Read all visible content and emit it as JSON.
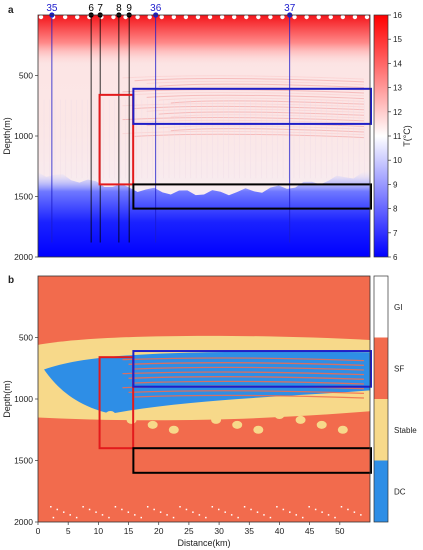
{
  "chart_data": [
    {
      "panel": "a",
      "type": "heatmap",
      "xlabel": "",
      "ylabel": "Depth(m)",
      "xlim": [
        0,
        55
      ],
      "ylim": [
        2000,
        0
      ],
      "yticks": [
        500,
        1000,
        1500,
        2000
      ],
      "colorbar": {
        "label": "T(°C)",
        "range": [
          6,
          16
        ],
        "ticks": [
          "6",
          "7",
          "8",
          "9",
          "10",
          "11",
          "12",
          "13",
          "14",
          "15",
          "16"
        ],
        "colors": [
          "#0000ff",
          "#ffffff",
          "#ff0000"
        ]
      },
      "stations": [
        {
          "label": "35",
          "x": 2.3,
          "color": "#1a1acc"
        },
        {
          "label": "6",
          "x": 8.8,
          "color": "#000000"
        },
        {
          "label": "7",
          "x": 10.3,
          "color": "#000000"
        },
        {
          "label": "8",
          "x": 13.4,
          "color": "#000000"
        },
        {
          "label": "9",
          "x": 15.1,
          "color": "#000000"
        },
        {
          "label": "36",
          "x": 19.5,
          "color": "#1a1acc"
        },
        {
          "label": "37",
          "x": 41.7,
          "color": "#1a1acc"
        }
      ],
      "rectangles": [
        {
          "name": "red",
          "x": [
            10.2,
            15.6
          ],
          "depth": [
            660,
            1400
          ],
          "color": "#e31a1c"
        },
        {
          "name": "blue",
          "x": [
            15.8,
            55
          ],
          "depth": [
            610,
            900
          ],
          "color": "#1f1fc7"
        },
        {
          "name": "black",
          "x": [
            15.8,
            55
          ],
          "depth": [
            1400,
            1600
          ],
          "color": "#000000"
        }
      ],
      "structure": {
        "warm_surface_depth": 150,
        "cold_layer_top_center": 1470,
        "cold_layer_top_edge": 1300
      }
    },
    {
      "panel": "b",
      "type": "heatmap",
      "xlabel": "Distance(km)",
      "ylabel": "Depth(m)",
      "xlim": [
        0,
        55
      ],
      "ylim": [
        2000,
        0
      ],
      "xticks": [
        0,
        5,
        10,
        15,
        20,
        25,
        30,
        35,
        40,
        45,
        50
      ],
      "yticks": [
        500,
        1000,
        1500,
        2000
      ],
      "categories": [
        {
          "label": "DC",
          "color": "#2e8ee6"
        },
        {
          "label": "Stable",
          "color": "#f7d98a"
        },
        {
          "label": "SF",
          "color": "#f26b4d"
        },
        {
          "label": "GI",
          "color": "#ffffff"
        }
      ],
      "rectangles": [
        {
          "name": "red",
          "x": [
            10.2,
            15.6
          ],
          "depth": [
            660,
            1400
          ],
          "color": "#e31a1c"
        },
        {
          "name": "blue",
          "x": [
            15.8,
            55
          ],
          "depth": [
            610,
            900
          ],
          "color": "#1f1fc7"
        },
        {
          "name": "black",
          "x": [
            15.8,
            55
          ],
          "depth": [
            1400,
            1600
          ],
          "color": "#000000"
        }
      ]
    }
  ],
  "labels": {
    "panel_a": "a",
    "panel_b": "b"
  }
}
